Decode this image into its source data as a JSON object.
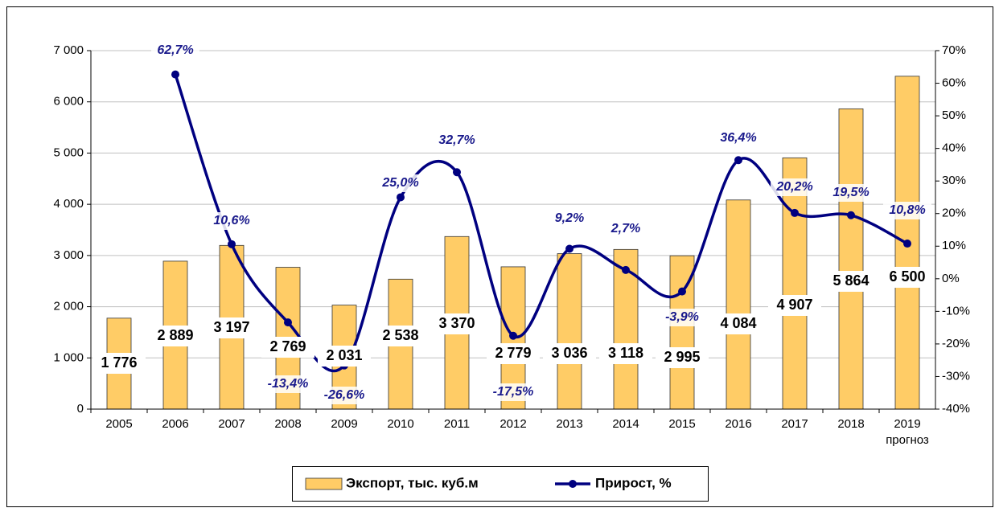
{
  "chart_data": {
    "type": "bar",
    "categories": [
      "2005",
      "2006",
      "2007",
      "2008",
      "2009",
      "2010",
      "2011",
      "2012",
      "2013",
      "2014",
      "2015",
      "2016",
      "2017",
      "2018",
      "2019"
    ],
    "category_note": "прогноз",
    "series": [
      {
        "name": "Экспорт, тыс. куб.м",
        "type": "bar",
        "color": "#ffcc66",
        "values": [
          1776,
          2889,
          3197,
          2769,
          2031,
          2538,
          3370,
          2779,
          3036,
          3118,
          2995,
          4084,
          4907,
          5864,
          6500
        ],
        "value_labels": [
          "1 776",
          "2 889",
          "3 197",
          "2 769",
          "2 031",
          "2 538",
          "3 370",
          "2 779",
          "3 036",
          "3 118",
          "2 995",
          "4 084",
          "4 907",
          "5 864",
          "6 500"
        ]
      },
      {
        "name": "Прирост, %",
        "type": "line",
        "axis": "y2",
        "color": "#000080",
        "smooth": true,
        "values": [
          null,
          62.7,
          10.6,
          -13.4,
          -26.6,
          25.0,
          32.7,
          -17.5,
          9.2,
          2.7,
          -3.9,
          36.4,
          20.2,
          19.5,
          10.8
        ],
        "value_labels": [
          null,
          "62,7%",
          "10,6%",
          "-13,4%",
          "-26,6%",
          "25,0%",
          "32,7%",
          "-17,5%",
          "9,2%",
          "2,7%",
          "-3,9%",
          "36,4%",
          "20,2%",
          "19,5%",
          "10,8%"
        ]
      }
    ],
    "ylim": [
      0,
      7000
    ],
    "yticks": [
      0,
      {
        "value": 1000,
        "label": "1 000"
      },
      {
        "value": 2000,
        "label": "2 000"
      },
      {
        "value": 3000,
        "label": "3 000"
      },
      {
        "value": 4000,
        "label": "4 000"
      },
      {
        "value": 5000,
        "label": "5 000"
      },
      {
        "value": 6000,
        "label": "6 000"
      },
      {
        "value": 7000,
        "label": "7 000"
      }
    ],
    "y2lim": [
      -40,
      70
    ],
    "y2ticks": [
      {
        "value": -40,
        "label": "-40%"
      },
      {
        "value": -30,
        "label": "-30%"
      },
      {
        "value": -20,
        "label": "-20%"
      },
      {
        "value": -10,
        "label": "-10%"
      },
      {
        "value": 0,
        "label": "0%"
      },
      {
        "value": 10,
        "label": "10%"
      },
      {
        "value": 20,
        "label": "20%"
      },
      {
        "value": 30,
        "label": "30%"
      },
      {
        "value": 40,
        "label": "40%"
      },
      {
        "value": 50,
        "label": "50%"
      },
      {
        "value": 60,
        "label": "60%"
      },
      {
        "value": 70,
        "label": "70%"
      }
    ],
    "grid": true,
    "legend": "bottom"
  }
}
